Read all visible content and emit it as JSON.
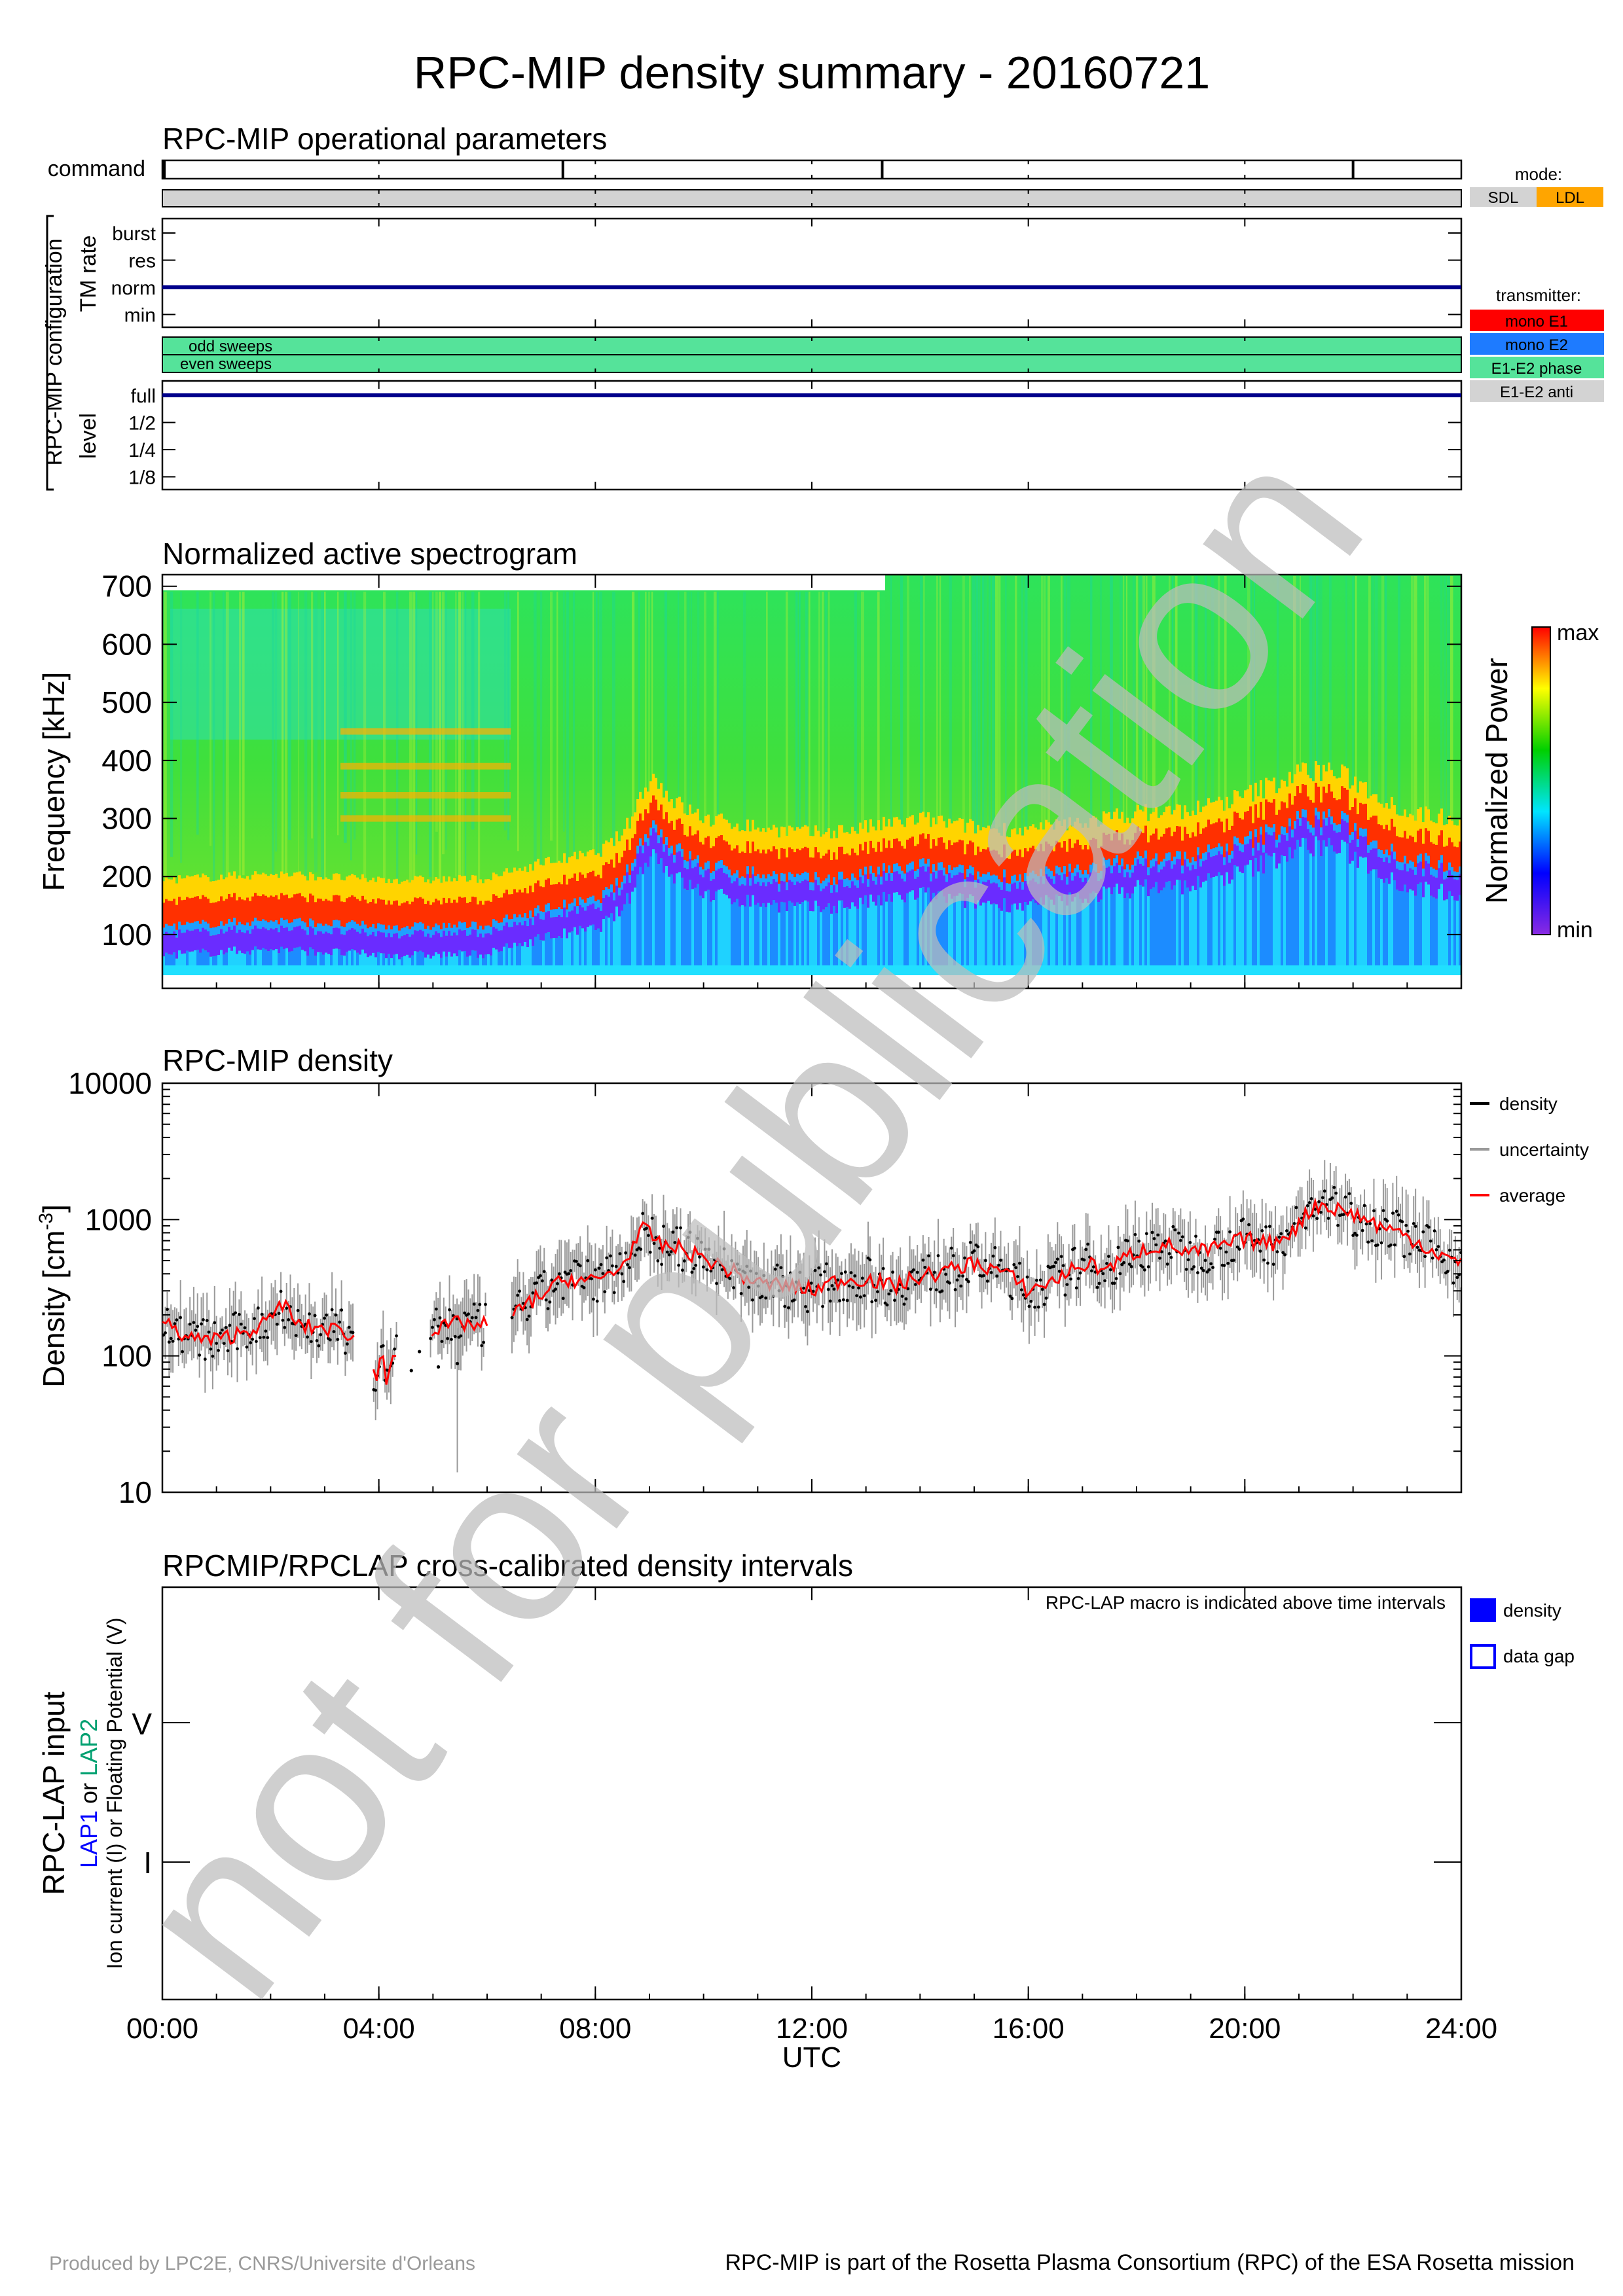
{
  "title": "RPC-MIP density summary - 20160721",
  "watermark": "not for publication",
  "footer": {
    "left": "Produced by LPC2E, CNRS/Universite d'Orleans",
    "right": "RPC-MIP is part of the Rosetta Plasma Consortium (RPC) of the ESA Rosetta mission"
  },
  "ops": {
    "title": "RPC-MIP operational parameters",
    "command_label": "command",
    "command_marks_h": [
      7.4,
      13.3,
      22.0
    ],
    "config_label": "RPC-MIP configuration",
    "tm_rate_label": "TM rate",
    "tm_levels": [
      "burst",
      "res",
      "norm",
      "min"
    ],
    "tm_value": "norm",
    "sweeps": [
      "odd sweeps",
      "even sweeps"
    ],
    "level_label": "level",
    "level_levels": [
      "full",
      "1/2",
      "1/4",
      "1/8"
    ],
    "level_value": "full",
    "mode_legend": {
      "title": "mode:",
      "items": [
        {
          "label": "SDL",
          "color": "#d3d3d3"
        },
        {
          "label": "LDL",
          "color": "#ffa500"
        }
      ]
    },
    "transmitter_legend": {
      "title": "transmitter:",
      "items": [
        {
          "label": "mono E1",
          "color": "#ff0000"
        },
        {
          "label": "mono E2",
          "color": "#1e7bff"
        },
        {
          "label": "E1-E2 phase",
          "color": "#55e39a"
        },
        {
          "label": "E1-E2 anti",
          "color": "#d3d3d3"
        }
      ]
    },
    "colors": {
      "mode_sdl": "#d3d3d3",
      "sweep_fill": "#55e39a",
      "trace": "#00008b"
    }
  },
  "spectrogram": {
    "title": "Normalized active spectrogram",
    "ylabel": "Frequency [kHz]",
    "yticks": [
      "700",
      "600",
      "500",
      "400",
      "300",
      "200",
      "100"
    ],
    "colorbar_label": "Normalized Power",
    "colorbar_max": "max",
    "colorbar_min": "min"
  },
  "density": {
    "title": "RPC-MIP density",
    "ylabel_main": "Density [cm",
    "ylabel_exp": "-3",
    "ylabel_close": "]",
    "yticks": [
      "10000",
      "1000",
      "100",
      "10"
    ],
    "legend": [
      {
        "label": "density",
        "color": "#000000"
      },
      {
        "label": "uncertainty",
        "color": "#9a9a9a"
      },
      {
        "label": "average",
        "color": "#ff0000"
      }
    ]
  },
  "lap": {
    "title": "RPCMIP/RPCLAP cross-calibrated density intervals",
    "note": "RPC-LAP macro is indicated above time intervals",
    "ylabel": "RPC-LAP input",
    "lap1": "LAP1",
    "or1": " or ",
    "lap2": "LAP2",
    "sublabel": "Ion current (I) or Floating Potential (V)",
    "ytick_v": "V",
    "ytick_i": "I",
    "legend": [
      {
        "label": "density",
        "color": "#0000ff"
      },
      {
        "label": "data gap",
        "color": "#0000ff"
      }
    ],
    "colors": {
      "lap1": "#0000ff",
      "lap2": "#00a070"
    }
  },
  "xaxis": {
    "ticks": [
      "00:00",
      "04:00",
      "08:00",
      "12:00",
      "16:00",
      "20:00",
      "24:00"
    ],
    "label": "UTC"
  },
  "chart_data": [
    {
      "type": "heatmap",
      "title": "Normalized active spectrogram",
      "ylabel": "Frequency [kHz]",
      "ylim": [
        30,
        700
      ],
      "xlim_hours": [
        0,
        24
      ],
      "plasma_line_kHz": {
        "hours": [
          0,
          1,
          2,
          3,
          4,
          5,
          6,
          7,
          8,
          8.5,
          9,
          9.5,
          10,
          11,
          12,
          13,
          14,
          15,
          16,
          17,
          18,
          19,
          20,
          21,
          21.5,
          22,
          23,
          24
        ],
        "values": [
          110,
          115,
          120,
          115,
          110,
          110,
          112,
          140,
          155,
          190,
          290,
          240,
          215,
          200,
          190,
          200,
          215,
          200,
          195,
          210,
          225,
          230,
          255,
          295,
          300,
          280,
          225,
          215
        ]
      }
    },
    {
      "type": "line",
      "title": "RPC-MIP density",
      "ylabel": "Density [cm-3]",
      "yscale": "log",
      "ylim": [
        10,
        10000
      ],
      "x_hours": [
        0,
        0.5,
        1,
        1.5,
        2,
        2.2,
        2.5,
        3,
        3.5,
        3.95,
        4.05,
        4.15,
        4.25,
        5,
        5.5,
        5.9,
        6.5,
        7,
        7.5,
        8,
        8.5,
        8.9,
        9.2,
        9.5,
        10,
        10.5,
        11,
        11.5,
        12,
        12.5,
        13,
        13.5,
        14,
        14.5,
        15,
        15.5,
        16,
        16.5,
        17,
        17.5,
        18,
        18.5,
        19,
        19.5,
        20,
        20.5,
        21,
        21.3,
        21.7,
        22,
        22.5,
        23,
        23.5,
        24
      ],
      "series": [
        {
          "name": "average",
          "values": [
            175,
            135,
            130,
            150,
            180,
            250,
            165,
            160,
            145,
            65,
            110,
            60,
            110,
            150,
            175,
            165,
            200,
            280,
            370,
            350,
            450,
            850,
            650,
            620,
            520,
            420,
            340,
            330,
            300,
            360,
            370,
            320,
            380,
            420,
            480,
            420,
            300,
            360,
            470,
            440,
            580,
            660,
            560,
            620,
            720,
            660,
            900,
            1300,
            1200,
            1100,
            900,
            750,
            580,
            460
          ]
        }
      ]
    }
  ]
}
